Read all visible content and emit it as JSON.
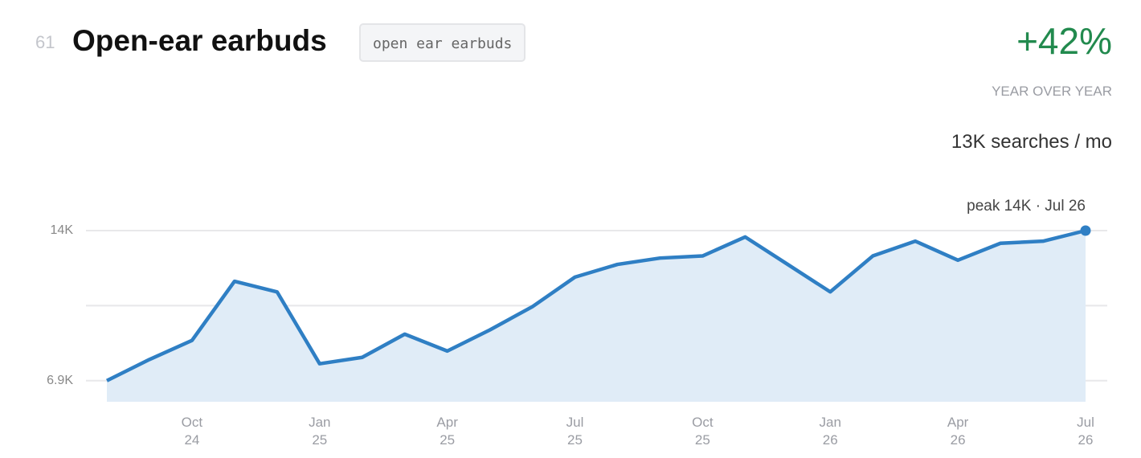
{
  "header": {
    "rank": "61",
    "title": "Open-ear earbuds",
    "tag": "open ear earbuds",
    "change": "+42%",
    "change_label": "YEAR OVER YEAR",
    "volume": "13K searches / mo"
  },
  "chart_data": {
    "type": "area",
    "categories": [
      null,
      null,
      "Oct 24",
      null,
      null,
      "Jan 25",
      null,
      null,
      "Apr 25",
      null,
      null,
      "Jul 25",
      null,
      null,
      "Oct 25",
      null,
      null,
      "Jan 26",
      null,
      null,
      "Apr 26",
      null,
      null,
      "Jul 26"
    ],
    "values": [
      6900,
      7900,
      8800,
      11600,
      11100,
      7700,
      8000,
      9100,
      8300,
      9300,
      10400,
      11800,
      12400,
      12700,
      12800,
      13700,
      12400,
      11100,
      12800,
      13500,
      12600,
      13400,
      13500,
      14000
    ],
    "color": "#2f7fc4",
    "fill": "#e0ecf7",
    "ylim": [
      5900,
      14000
    ],
    "yticks": [
      {
        "value": 6900,
        "label": "6.9K"
      },
      {
        "value": 14000,
        "label": "14K"
      }
    ],
    "grid": true,
    "annotation": "peak 14K · Jul 26"
  }
}
